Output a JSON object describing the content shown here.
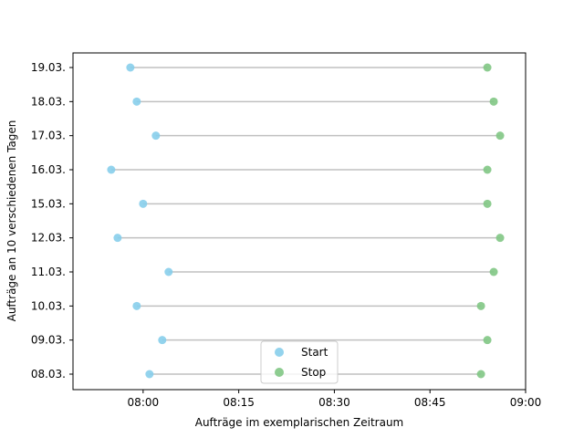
{
  "chart_data": {
    "type": "scatter",
    "title": "",
    "xlabel": "Aufträge im exemplarischen Zeitraum",
    "ylabel": "Aufträge an 10 verschiedenen Tagen",
    "categories": [
      "08.03.",
      "09.03.",
      "10.03.",
      "11.03.",
      "12.03.",
      "15.03.",
      "16.03.",
      "17.03.",
      "18.03.",
      "19.03."
    ],
    "xlim": [
      "07:49",
      "09:00"
    ],
    "x_ticks": [
      "08:00",
      "08:15",
      "08:30",
      "08:45",
      "09:00"
    ],
    "grid": false,
    "legend_position": "lower-center",
    "connector_color": "#c0c0c0",
    "series": [
      {
        "name": "Start",
        "color": "#87ceeb",
        "values": [
          "08:01",
          "08:03",
          "07:59",
          "08:04",
          "07:56",
          "08:00",
          "07:55",
          "08:02",
          "07:59",
          "07:58"
        ]
      },
      {
        "name": "Stop",
        "color": "#81c784",
        "values": [
          "08:53",
          "08:54",
          "08:53",
          "08:55",
          "08:56",
          "08:54",
          "08:54",
          "08:56",
          "08:55",
          "08:54"
        ]
      }
    ]
  }
}
